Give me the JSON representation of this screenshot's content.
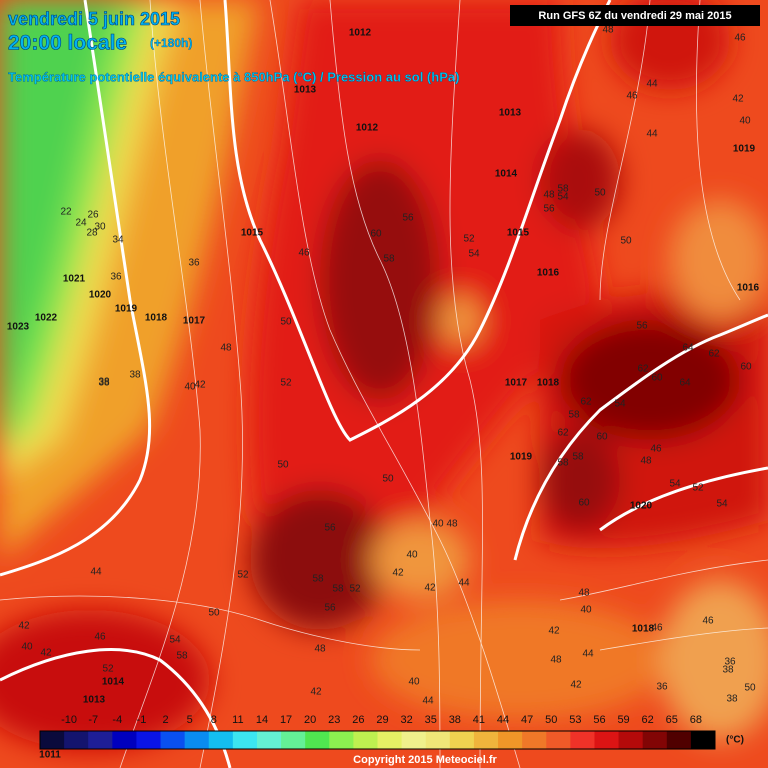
{
  "header": {
    "date": "vendredi 5 juin 2015",
    "time": "20:00 locale",
    "lead": "(+180h)",
    "title": "Température potentielle équivalente à 850hPa (°C) / Pression au sol (hPa)",
    "run": "Run GFS 6Z du vendredi 29 mai 2015"
  },
  "map": {
    "pressure_labels": [
      1012,
      1013,
      1012,
      1013,
      1014,
      1015,
      1015,
      1016,
      1021,
      1020,
      1019,
      1023,
      1022,
      1018,
      1017,
      1017,
      1018,
      1019,
      1020,
      1018,
      1014,
      1013,
      1011,
      1019,
      1016
    ],
    "temperature_labels": [
      48,
      46,
      46,
      44,
      44,
      42,
      40,
      22,
      26,
      24,
      30,
      28,
      34,
      36,
      46,
      60,
      58,
      56,
      52,
      54,
      36,
      38,
      38,
      48,
      50,
      52,
      58,
      56,
      54,
      48,
      50,
      62,
      64,
      60,
      62,
      64,
      62,
      60,
      58,
      62,
      58,
      60,
      46,
      48,
      54,
      52,
      54,
      50,
      56,
      60,
      58,
      54,
      50,
      40,
      42,
      40,
      42,
      44,
      48,
      50,
      52,
      56,
      58,
      48,
      44,
      42,
      40,
      38,
      40,
      42,
      40,
      42,
      44,
      48,
      42,
      36,
      38,
      46,
      46,
      42,
      46,
      52,
      58,
      54,
      50,
      56,
      58,
      52,
      48,
      42,
      40,
      36,
      38,
      44,
      50
    ]
  },
  "legend": {
    "unit": "(°C)",
    "ticks": [
      -10,
      -7,
      -4,
      -1,
      2,
      5,
      8,
      11,
      14,
      17,
      20,
      23,
      26,
      29,
      32,
      35,
      38,
      41,
      44,
      47,
      50,
      53,
      56,
      59,
      62,
      65,
      68
    ],
    "colors": [
      "#0a0a3c",
      "#14146e",
      "#1e1e96",
      "#0000be",
      "#0a14e6",
      "#0a50f0",
      "#0a8cf0",
      "#14bef0",
      "#3ce6f0",
      "#64f0d2",
      "#64f096",
      "#50e650",
      "#8cf050",
      "#bef050",
      "#e6f064",
      "#f0f08c",
      "#f0e678",
      "#f0d250",
      "#f0b43c",
      "#f09628",
      "#f07828",
      "#f05a28",
      "#f03228",
      "#dc1414",
      "#b40a0a",
      "#820505",
      "#500000"
    ]
  },
  "footer": {
    "copyright": "Copyright 2015 Meteociel.fr"
  }
}
